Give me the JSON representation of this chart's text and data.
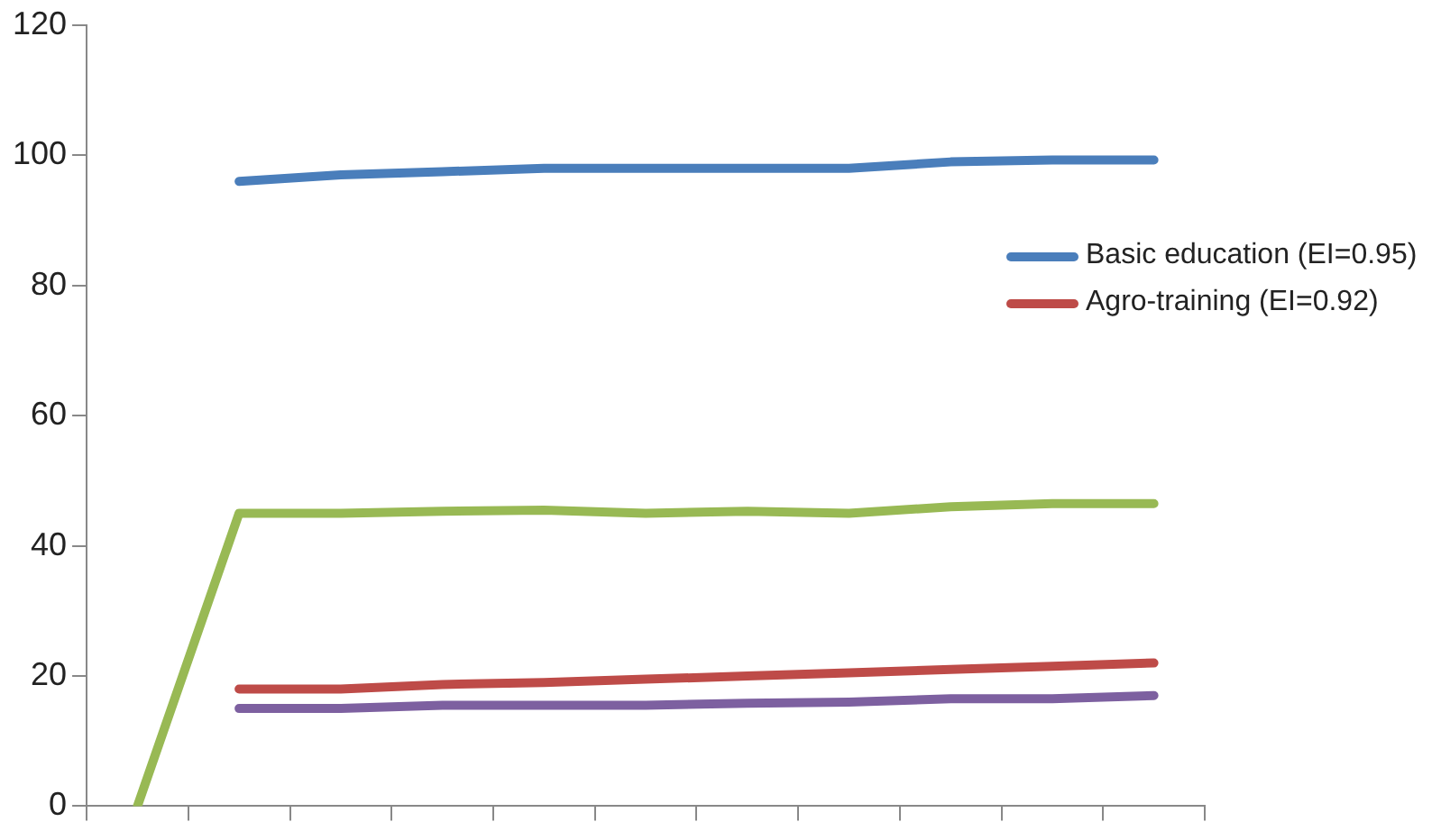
{
  "chart_data": {
    "type": "line",
    "categories": [
      null,
      null,
      null,
      null,
      null,
      null,
      null,
      null,
      null,
      null,
      null
    ],
    "series": [
      {
        "name": "Basic education (EI=0.95)",
        "color": "#4a7ebb",
        "values": [
          null,
          96,
          97,
          97.5,
          98,
          98,
          98,
          98,
          99,
          99.3,
          99.3
        ]
      },
      {
        "name": "Agro-training (EI=0.92)",
        "color": "#be4b48",
        "values": [
          null,
          18,
          18,
          18.7,
          19,
          19.5,
          20,
          20.5,
          21,
          21.5,
          22
        ]
      },
      {
        "color": "#98b954",
        "values": [
          0,
          45,
          45,
          45.3,
          45.5,
          45,
          45.3,
          45,
          46,
          46.5,
          46.5
        ]
      },
      {
        "color": "#7d60a0",
        "values": [
          null,
          15,
          15,
          15.5,
          15.5,
          15.5,
          15.8,
          16,
          16.5,
          16.5,
          17
        ]
      }
    ],
    "ylim": [
      0,
      120
    ],
    "yticks": [
      0,
      20,
      40,
      60,
      80,
      100,
      120
    ],
    "grid": false,
    "legend": "right",
    "tick_labels": "y",
    "marker": "none",
    "line_style": "solid"
  }
}
